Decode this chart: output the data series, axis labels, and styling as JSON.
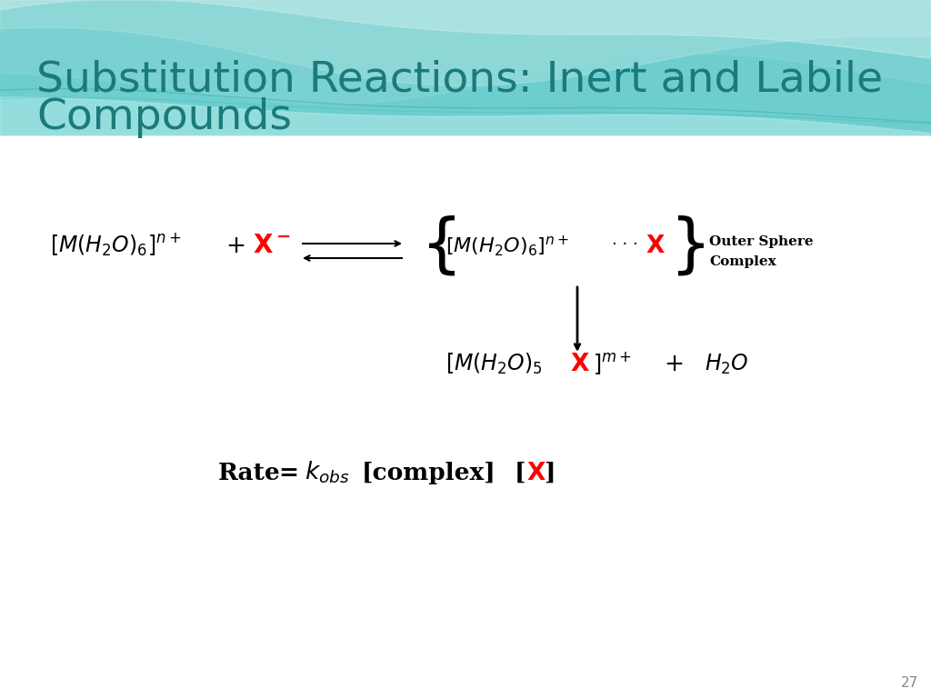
{
  "title_line1": "Substitution Reactions: Inert and Labile",
  "title_line2": "Compounds",
  "title_color": "#1B7A7A",
  "title_fontsize": 34,
  "slide_bg": "#ffffff",
  "slide_number": "27",
  "header_bg_color": "#6ECECE",
  "wave_color_light": "#A8DFDF",
  "wave_white_alpha": 0.5
}
